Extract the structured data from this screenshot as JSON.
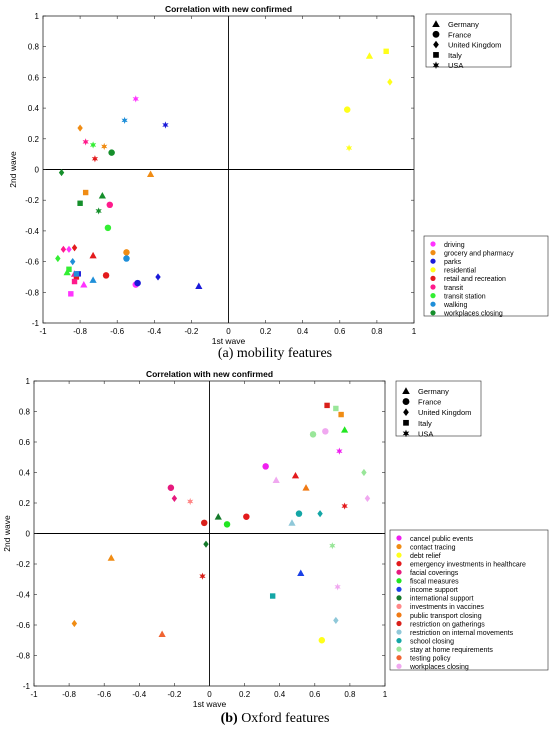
{
  "chart_data": [
    {
      "type": "scatter",
      "title": "Correlation with new confirmed",
      "xlabel": "1st wave",
      "ylabel": "2nd wave",
      "xlim": [
        -1,
        1
      ],
      "ylim": [
        -1,
        1
      ],
      "xticks": [
        "-1",
        "-0.8",
        "-0.6",
        "-0.4",
        "-0.2",
        "0",
        "0.2",
        "0.4",
        "0.6",
        "0.8",
        "1"
      ],
      "yticks": [
        "-1",
        "-0.8",
        "-0.6",
        "-0.4",
        "-0.2",
        "0",
        "0.2",
        "0.4",
        "0.6",
        "0.8",
        "1"
      ],
      "grid": false,
      "shape_legend_placement": "top-right",
      "color_legend_placement": "bottom-right",
      "countries": [
        {
          "name": "Germany",
          "marker": "triangle"
        },
        {
          "name": "France",
          "marker": "circle"
        },
        {
          "name": "United Kingdom",
          "marker": "diamond"
        },
        {
          "name": "Italy",
          "marker": "square"
        },
        {
          "name": "USA",
          "marker": "star"
        }
      ],
      "features": [
        {
          "name": "driving",
          "color": "#ff33ff"
        },
        {
          "name": "grocery and pharmacy",
          "color": "#f08c14"
        },
        {
          "name": "parks",
          "color": "#1a1ad9"
        },
        {
          "name": "residential",
          "color": "#ffff1a"
        },
        {
          "name": "retail and recreation",
          "color": "#e31a1c"
        },
        {
          "name": "transit",
          "color": "#ff1a8c"
        },
        {
          "name": "transit station",
          "color": "#33ee33"
        },
        {
          "name": "walking",
          "color": "#1f8fd9"
        },
        {
          "name": "workplaces closing",
          "color": "#158f2b"
        }
      ],
      "points": [
        {
          "f": 0,
          "c": 0,
          "x": -0.78,
          "y": -0.75
        },
        {
          "f": 0,
          "c": 1,
          "x": -0.5,
          "y": -0.75
        },
        {
          "f": 0,
          "c": 2,
          "x": -0.86,
          "y": -0.52
        },
        {
          "f": 0,
          "c": 3,
          "x": -0.85,
          "y": -0.81
        },
        {
          "f": 0,
          "c": 4,
          "x": -0.5,
          "y": 0.46
        },
        {
          "f": 1,
          "c": 0,
          "x": -0.42,
          "y": -0.03
        },
        {
          "f": 1,
          "c": 1,
          "x": -0.55,
          "y": -0.54
        },
        {
          "f": 1,
          "c": 2,
          "x": -0.8,
          "y": 0.27
        },
        {
          "f": 1,
          "c": 3,
          "x": -0.77,
          "y": -0.15
        },
        {
          "f": 1,
          "c": 4,
          "x": -0.67,
          "y": 0.15
        },
        {
          "f": 2,
          "c": 0,
          "x": -0.16,
          "y": -0.76
        },
        {
          "f": 2,
          "c": 1,
          "x": -0.49,
          "y": -0.74
        },
        {
          "f": 2,
          "c": 2,
          "x": -0.38,
          "y": -0.7
        },
        {
          "f": 2,
          "c": 3,
          "x": -0.81,
          "y": -0.68
        },
        {
          "f": 2,
          "c": 4,
          "x": -0.34,
          "y": 0.29
        },
        {
          "f": 3,
          "c": 0,
          "x": 0.76,
          "y": 0.74
        },
        {
          "f": 3,
          "c": 1,
          "x": 0.64,
          "y": 0.39
        },
        {
          "f": 3,
          "c": 2,
          "x": 0.87,
          "y": 0.57
        },
        {
          "f": 3,
          "c": 3,
          "x": 0.85,
          "y": 0.77
        },
        {
          "f": 3,
          "c": 4,
          "x": 0.65,
          "y": 0.14
        },
        {
          "f": 4,
          "c": 0,
          "x": -0.73,
          "y": -0.56
        },
        {
          "f": 4,
          "c": 1,
          "x": -0.66,
          "y": -0.69
        },
        {
          "f": 4,
          "c": 2,
          "x": -0.83,
          "y": -0.51
        },
        {
          "f": 4,
          "c": 3,
          "x": -0.82,
          "y": -0.7
        },
        {
          "f": 4,
          "c": 4,
          "x": -0.72,
          "y": 0.07
        },
        {
          "f": 5,
          "c": 0,
          "x": -0.83,
          "y": -0.68
        },
        {
          "f": 5,
          "c": 1,
          "x": -0.64,
          "y": -0.23
        },
        {
          "f": 5,
          "c": 2,
          "x": -0.89,
          "y": -0.52
        },
        {
          "f": 5,
          "c": 3,
          "x": -0.83,
          "y": -0.73
        },
        {
          "f": 5,
          "c": 4,
          "x": -0.77,
          "y": 0.18
        },
        {
          "f": 6,
          "c": 0,
          "x": -0.87,
          "y": -0.67
        },
        {
          "f": 6,
          "c": 1,
          "x": -0.65,
          "y": -0.38
        },
        {
          "f": 6,
          "c": 2,
          "x": -0.92,
          "y": -0.58
        },
        {
          "f": 6,
          "c": 3,
          "x": -0.86,
          "y": -0.65
        },
        {
          "f": 6,
          "c": 4,
          "x": -0.73,
          "y": 0.16
        },
        {
          "f": 7,
          "c": 0,
          "x": -0.73,
          "y": -0.72
        },
        {
          "f": 7,
          "c": 1,
          "x": -0.55,
          "y": -0.58
        },
        {
          "f": 7,
          "c": 2,
          "x": -0.84,
          "y": -0.6
        },
        {
          "f": 7,
          "c": 3,
          "x": -0.82,
          "y": -0.68
        },
        {
          "f": 7,
          "c": 4,
          "x": -0.56,
          "y": 0.32
        },
        {
          "f": 8,
          "c": 0,
          "x": -0.68,
          "y": -0.17
        },
        {
          "f": 8,
          "c": 1,
          "x": -0.63,
          "y": 0.11
        },
        {
          "f": 8,
          "c": 2,
          "x": -0.9,
          "y": -0.02
        },
        {
          "f": 8,
          "c": 3,
          "x": -0.8,
          "y": -0.22
        },
        {
          "f": 8,
          "c": 4,
          "x": -0.7,
          "y": -0.27
        }
      ],
      "caption": "(a) mobility features"
    },
    {
      "type": "scatter",
      "title": "Correlation with new confirmed",
      "xlabel": "1st wave",
      "ylabel": "2nd wave",
      "xlim": [
        -1,
        1
      ],
      "ylim": [
        -1,
        1
      ],
      "xticks": [
        "-1",
        "-0.8",
        "-0.6",
        "-0.4",
        "-0.2",
        "0",
        "0.2",
        "0.4",
        "0.6",
        "0.8",
        "1"
      ],
      "yticks": [
        "-1",
        "-0.8",
        "-0.6",
        "-0.4",
        "-0.2",
        "0",
        "0.2",
        "0.4",
        "0.6",
        "0.8",
        "1"
      ],
      "grid": false,
      "shape_legend_placement": "top-right",
      "color_legend_placement": "bottom-right",
      "countries": [
        {
          "name": "Germany",
          "marker": "triangle"
        },
        {
          "name": "France",
          "marker": "circle"
        },
        {
          "name": "United Kingdom",
          "marker": "diamond"
        },
        {
          "name": "Italy",
          "marker": "square"
        },
        {
          "name": "USA",
          "marker": "star"
        }
      ],
      "features": [
        {
          "name": "cancel public events",
          "color": "#f020f0"
        },
        {
          "name": "contact tracing",
          "color": "#f08c14"
        },
        {
          "name": "debt relief",
          "color": "#ffff1a"
        },
        {
          "name": "emergency investments in healthcare",
          "color": "#e31a1c"
        },
        {
          "name": "facial coverings",
          "color": "#e6197d"
        },
        {
          "name": "fiscal measures",
          "color": "#22e622"
        },
        {
          "name": "income support",
          "color": "#1a40e6"
        },
        {
          "name": "international support",
          "color": "#157a2b"
        },
        {
          "name": "investments in vaccines",
          "color": "#ff8888"
        },
        {
          "name": "public transport closing",
          "color": "#f07a14"
        },
        {
          "name": "restriction on gatherings",
          "color": "#d9201a"
        },
        {
          "name": "restriction on internal movements",
          "color": "#8fc8d9"
        },
        {
          "name": "school closing",
          "color": "#14a6a6"
        },
        {
          "name": "stay at home requirements",
          "color": "#99e699"
        },
        {
          "name": "testing policy",
          "color": "#f06432"
        },
        {
          "name": "workplaces closing",
          "color": "#f0a8f0"
        }
      ],
      "points": [
        {
          "f": 0,
          "c": 1,
          "x": 0.32,
          "y": 0.44
        },
        {
          "f": 0,
          "c": 4,
          "x": 0.74,
          "y": 0.54
        },
        {
          "f": 1,
          "c": 0,
          "x": -0.56,
          "y": -0.16
        },
        {
          "f": 1,
          "c": 2,
          "x": -0.77,
          "y": -0.59
        },
        {
          "f": 1,
          "c": 3,
          "x": 0.75,
          "y": 0.78
        },
        {
          "f": 2,
          "c": 1,
          "x": 0.64,
          "y": -0.7
        },
        {
          "f": 3,
          "c": 0,
          "x": 0.49,
          "y": 0.38
        },
        {
          "f": 3,
          "c": 1,
          "x": 0.21,
          "y": 0.11
        },
        {
          "f": 3,
          "c": 4,
          "x": 0.77,
          "y": 0.18
        },
        {
          "f": 4,
          "c": 1,
          "x": -0.22,
          "y": 0.3
        },
        {
          "f": 4,
          "c": 2,
          "x": -0.2,
          "y": 0.23
        },
        {
          "f": 5,
          "c": 0,
          "x": 0.77,
          "y": 0.68
        },
        {
          "f": 5,
          "c": 1,
          "x": 0.1,
          "y": 0.06
        },
        {
          "f": 6,
          "c": 0,
          "x": 0.52,
          "y": -0.26
        },
        {
          "f": 7,
          "c": 0,
          "x": 0.05,
          "y": 0.11
        },
        {
          "f": 7,
          "c": 2,
          "x": -0.02,
          "y": -0.07
        },
        {
          "f": 8,
          "c": 4,
          "x": -0.11,
          "y": 0.21
        },
        {
          "f": 9,
          "c": 0,
          "x": 0.55,
          "y": 0.3
        },
        {
          "f": 10,
          "c": 1,
          "x": -0.03,
          "y": 0.07
        },
        {
          "f": 10,
          "c": 3,
          "x": 0.67,
          "y": 0.84
        },
        {
          "f": 10,
          "c": 4,
          "x": -0.04,
          "y": -0.28
        },
        {
          "f": 11,
          "c": 0,
          "x": 0.47,
          "y": 0.07
        },
        {
          "f": 11,
          "c": 2,
          "x": 0.72,
          "y": -0.57
        },
        {
          "f": 12,
          "c": 1,
          "x": 0.51,
          "y": 0.13
        },
        {
          "f": 12,
          "c": 2,
          "x": 0.63,
          "y": 0.13
        },
        {
          "f": 12,
          "c": 3,
          "x": 0.36,
          "y": -0.41
        },
        {
          "f": 13,
          "c": 1,
          "x": 0.59,
          "y": 0.65
        },
        {
          "f": 13,
          "c": 2,
          "x": 0.88,
          "y": 0.4
        },
        {
          "f": 13,
          "c": 3,
          "x": 0.72,
          "y": 0.82
        },
        {
          "f": 13,
          "c": 4,
          "x": 0.7,
          "y": -0.08
        },
        {
          "f": 14,
          "c": 0,
          "x": -0.27,
          "y": -0.66
        },
        {
          "f": 15,
          "c": 0,
          "x": 0.38,
          "y": 0.35
        },
        {
          "f": 15,
          "c": 1,
          "x": 0.66,
          "y": 0.67
        },
        {
          "f": 15,
          "c": 2,
          "x": 0.9,
          "y": 0.23
        },
        {
          "f": 15,
          "c": 4,
          "x": 0.73,
          "y": -0.35
        }
      ],
      "caption_label": "(b)",
      "caption": "Oxford features"
    }
  ]
}
